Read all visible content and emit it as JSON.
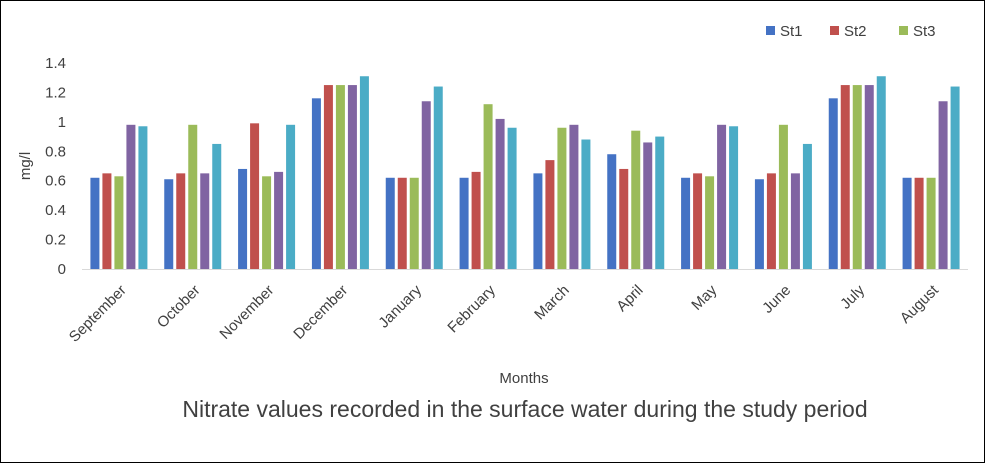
{
  "caption": "Nitrate values recorded in the surface water during the study period",
  "chart_data": {
    "type": "bar",
    "title": "",
    "xlabel": "Months",
    "ylabel": "mg/l",
    "ylim": [
      0,
      1.4
    ],
    "yticks": [
      "0",
      "0.2",
      "0.4",
      "0.6",
      "0.8",
      "1",
      "1.2",
      "1.4"
    ],
    "grid": false,
    "legend_position": "top-right",
    "categories": [
      "September",
      "October",
      "November",
      "December",
      "January",
      "February",
      "March",
      "April",
      "May",
      "June",
      "July",
      "August"
    ],
    "series": [
      {
        "name": "St1",
        "color": "#4472C4",
        "values": [
          0.62,
          0.61,
          0.68,
          1.16,
          0.62,
          0.62,
          0.65,
          0.78,
          0.62,
          0.61,
          1.16,
          0.62
        ]
      },
      {
        "name": "St2",
        "color": "#C0504D",
        "values": [
          0.65,
          0.65,
          0.99,
          1.25,
          0.62,
          0.66,
          0.74,
          0.68,
          0.65,
          0.65,
          1.25,
          0.62
        ]
      },
      {
        "name": "St3",
        "color": "#9BBB59",
        "values": [
          0.63,
          0.98,
          0.63,
          1.25,
          0.62,
          1.12,
          0.96,
          0.94,
          0.63,
          0.98,
          1.25,
          0.62
        ]
      },
      {
        "name": "",
        "color": "#8064A2",
        "values": [
          0.98,
          0.65,
          0.66,
          1.25,
          1.14,
          1.02,
          0.98,
          0.86,
          0.98,
          0.65,
          1.25,
          1.14
        ]
      },
      {
        "name": "",
        "color": "#4BACC6",
        "values": [
          0.97,
          0.85,
          0.98,
          1.31,
          1.24,
          0.96,
          0.88,
          0.9,
          0.97,
          0.85,
          1.31,
          1.24
        ]
      }
    ]
  }
}
